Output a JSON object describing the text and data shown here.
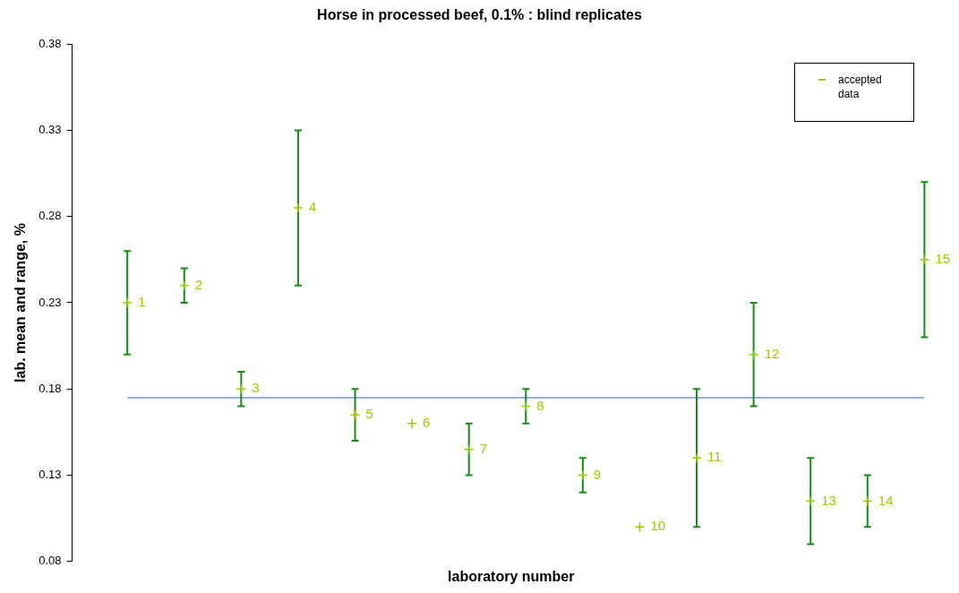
{
  "chart_data": {
    "type": "scatter",
    "title": "Horse in processed beef, 0.1% : blind replicates",
    "xlabel": "laboratory number",
    "ylabel": "lab. mean and range, %",
    "categories": [
      "1",
      "2",
      "3",
      "4",
      "5",
      "6",
      "7",
      "8",
      "9",
      "10",
      "11",
      "12",
      "13",
      "14",
      "15"
    ],
    "series": [
      {
        "name": "accepted data",
        "color": "#99cc00",
        "values": [
          0.23,
          0.24,
          0.18,
          0.285,
          0.165,
          0.16,
          0.145,
          0.17,
          0.13,
          0.1,
          0.14,
          0.2,
          0.115,
          0.115,
          0.255
        ],
        "errors": [
          [
            0.2,
            0.26
          ],
          [
            0.23,
            0.25
          ],
          [
            0.17,
            0.19
          ],
          [
            0.24,
            0.33
          ],
          [
            0.15,
            0.18
          ],
          null,
          [
            0.13,
            0.16
          ],
          [
            0.16,
            0.18
          ],
          [
            0.12,
            0.14
          ],
          null,
          [
            0.1,
            0.18
          ],
          [
            0.17,
            0.23
          ],
          [
            0.09,
            0.14
          ],
          [
            0.1,
            0.13
          ],
          [
            0.21,
            0.3
          ]
        ]
      }
    ],
    "ylim": [
      0.08,
      0.38
    ],
    "yticks": [
      0.08,
      0.13,
      0.18,
      0.23,
      0.28,
      0.33,
      0.38
    ],
    "ref_lines": [
      {
        "axis": "y",
        "value": 0.175,
        "color": "#6a9ad8"
      }
    ],
    "tick_labels": "y",
    "grid": false,
    "legend": "top right",
    "marker": "cross"
  }
}
